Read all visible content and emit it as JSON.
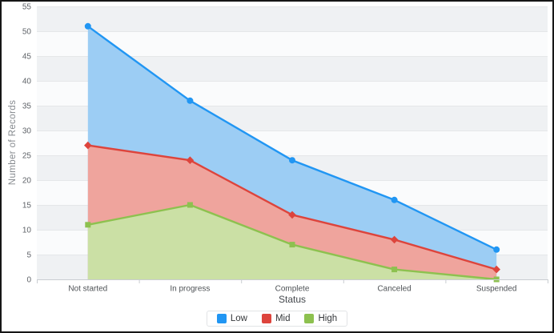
{
  "chart_data": {
    "type": "area",
    "stacked": false,
    "title": "",
    "xlabel": "Status",
    "ylabel": "Number of Records",
    "categories": [
      "Not started",
      "In progress",
      "Complete",
      "Canceled",
      "Suspended"
    ],
    "series": [
      {
        "name": "Low",
        "values": [
          51,
          36,
          24,
          16,
          6
        ],
        "color": "#2196f3",
        "fill": "#9ccdf4",
        "marker": "circle"
      },
      {
        "name": "Mid",
        "values": [
          27,
          24,
          13,
          8,
          2
        ],
        "color": "#dd443c",
        "fill": "#efa49d",
        "marker": "diamond"
      },
      {
        "name": "High",
        "values": [
          11,
          15,
          7,
          2,
          0
        ],
        "color": "#8dc14f",
        "fill": "#cbe0a5",
        "marker": "square"
      }
    ],
    "ylim": [
      0,
      55
    ],
    "ytick_interval": 5,
    "y_ticks": [
      0,
      5,
      10,
      15,
      20,
      25,
      30,
      35,
      40,
      45,
      50,
      55
    ],
    "grid": true,
    "alternate_bands": true,
    "legend_position": "bottom"
  }
}
